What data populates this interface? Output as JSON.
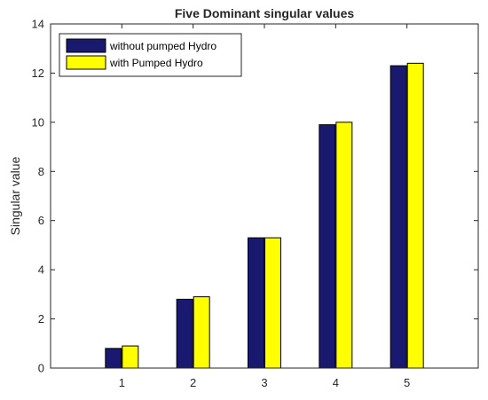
{
  "chart_data": {
    "type": "bar",
    "title": "Five Dominant singular values",
    "xlabel": "",
    "ylabel": "Singular value",
    "categories": [
      "1",
      "2",
      "3",
      "4",
      "5"
    ],
    "ylim": [
      0,
      14
    ],
    "yticks": [
      "0",
      "2",
      "4",
      "6",
      "8",
      "10",
      "12",
      "14"
    ],
    "grid": false,
    "legend_position": "top-left",
    "series": [
      {
        "name": "without pumped Hydro",
        "color": "#191970",
        "values": [
          0.8,
          2.8,
          5.3,
          9.9,
          12.3
        ]
      },
      {
        "name": "with Pumped Hydro",
        "color": "#ffff00",
        "values": [
          0.9,
          2.9,
          5.3,
          10.0,
          12.4
        ]
      }
    ]
  }
}
